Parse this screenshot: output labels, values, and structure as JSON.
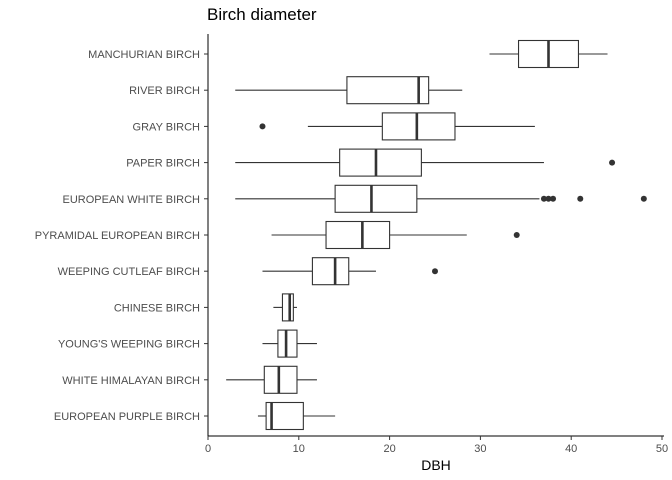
{
  "chart_data": {
    "type": "boxplot",
    "title": "Birch diameter",
    "xlabel": "DBH",
    "ylabel": "",
    "xlim": [
      0,
      50
    ],
    "x_ticks": [
      0,
      10,
      20,
      30,
      40,
      50
    ],
    "grid": false,
    "legend": "none",
    "colors": {
      "stroke": "#333333",
      "fill": "#ffffff",
      "text": "#4d4d4d"
    },
    "categories": [
      {
        "name": "MANCHURIAN BIRCH",
        "min": 31,
        "q1": 34.2,
        "median": 37.5,
        "q3": 40.8,
        "max": 44,
        "outliers": []
      },
      {
        "name": "RIVER BIRCH",
        "min": 3,
        "q1": 15.3,
        "median": 23.2,
        "q3": 24.3,
        "max": 28,
        "outliers": []
      },
      {
        "name": "GRAY BIRCH",
        "min": 11,
        "q1": 19.2,
        "median": 23,
        "q3": 27.2,
        "max": 36,
        "outliers": [
          6
        ]
      },
      {
        "name": "PAPER BIRCH",
        "min": 3,
        "q1": 14.5,
        "median": 18.5,
        "q3": 23.5,
        "max": 37,
        "outliers": [
          44.5
        ]
      },
      {
        "name": "EUROPEAN WHITE BIRCH",
        "min": 3,
        "q1": 14,
        "median": 18,
        "q3": 23,
        "max": 36.5,
        "outliers": [
          37,
          37.5,
          38,
          41,
          48
        ]
      },
      {
        "name": "PYRAMIDAL EUROPEAN BIRCH",
        "min": 7,
        "q1": 13,
        "median": 17,
        "q3": 20,
        "max": 28.5,
        "outliers": [
          34
        ]
      },
      {
        "name": "WEEPING CUTLEAF BIRCH",
        "min": 6,
        "q1": 11.5,
        "median": 14,
        "q3": 15.5,
        "max": 18.5,
        "outliers": [
          25
        ]
      },
      {
        "name": "CHINESE BIRCH",
        "min": 7.2,
        "q1": 8.2,
        "median": 9,
        "q3": 9.4,
        "max": 9.8,
        "outliers": []
      },
      {
        "name": "YOUNG'S WEEPING BIRCH",
        "min": 6,
        "q1": 7.7,
        "median": 8.6,
        "q3": 9.8,
        "max": 12,
        "outliers": []
      },
      {
        "name": "WHITE HIMALAYAN BIRCH",
        "min": 2,
        "q1": 6.2,
        "median": 7.8,
        "q3": 9.8,
        "max": 12,
        "outliers": []
      },
      {
        "name": "EUROPEAN PURPLE BIRCH",
        "min": 5.5,
        "q1": 6.4,
        "median": 7,
        "q3": 10.5,
        "max": 14,
        "outliers": []
      }
    ]
  }
}
